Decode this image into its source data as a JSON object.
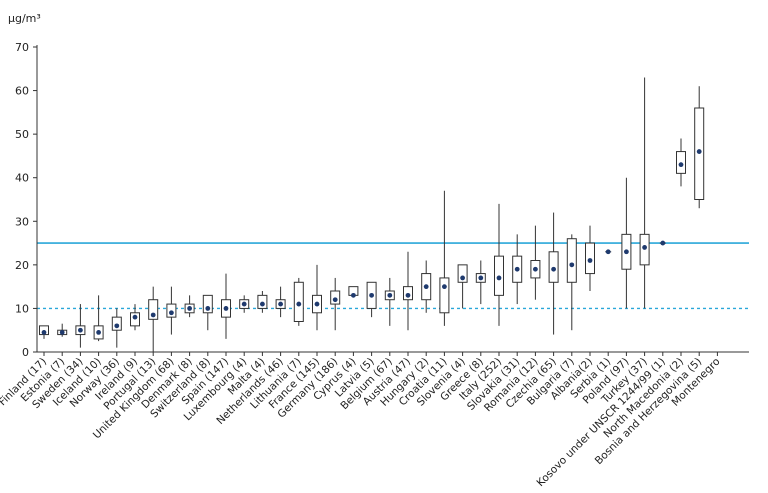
{
  "chart_data": {
    "type": "boxplot",
    "y_unit": "µg/m³",
    "ylim": [
      0,
      70
    ],
    "yticks": [
      0,
      10,
      20,
      30,
      40,
      50,
      60,
      70
    ],
    "reference_lines": [
      {
        "value": 25,
        "style": "solid",
        "color": "#2aa7d9"
      },
      {
        "value": 10,
        "style": "dashed",
        "color": "#2aa7d9"
      }
    ],
    "box_color": "#333333",
    "marker_color": "#1f3a6e",
    "categories": [
      "Finland (17)",
      "Estonia (7)",
      "Sweden (34)",
      "Iceland (10)",
      "Norway (36)",
      "Ireland (9)",
      "Portugal (13)",
      "United Kingdom (68)",
      "Denmark (8)",
      "Switzerland (8)",
      "Spain (147)",
      "Luxembourg (4)",
      "Malta (4)",
      "Netherlands (46)",
      "Lithuania (7)",
      "France (145)",
      "Germany (186)",
      "Cyprus (4)",
      "Latvia (5)",
      "Belgium (67)",
      "Austria (47)",
      "Hungary (2)",
      "Croatia (11)",
      "Slovenia (4)",
      "Greece (8)",
      "Italy (252)",
      "Slovakia (31)",
      "Romania (12)",
      "Czechia (65)",
      "Bulgaria (7)",
      "Albania(2)",
      "Serbia (1)",
      "Poland (97)",
      "Turkey (37)",
      "Kosovo under UNSCR 1244/99 (1)",
      "North Macedonia (2)",
      "Bosnia and Herzegovina (5)",
      "Montenegro"
    ],
    "series": [
      {
        "min": 3,
        "q1": 4,
        "median": 4.5,
        "q3": 6,
        "max": 6
      },
      {
        "min": 3.5,
        "q1": 4,
        "median": 4.5,
        "q3": 5,
        "max": 6.5
      },
      {
        "min": 1,
        "q1": 4,
        "median": 5,
        "q3": 6,
        "max": 11
      },
      {
        "min": 2.5,
        "q1": 3,
        "median": 4.5,
        "q3": 6,
        "max": 13
      },
      {
        "min": 1,
        "q1": 5,
        "median": 6,
        "q3": 8,
        "max": 10
      },
      {
        "min": 5,
        "q1": 6,
        "median": 8,
        "q3": 9,
        "max": 11
      },
      {
        "min": 0,
        "q1": 7.5,
        "median": 8.5,
        "q3": 12,
        "max": 15
      },
      {
        "min": 4,
        "q1": 8,
        "median": 9,
        "q3": 11,
        "max": 15
      },
      {
        "min": 8,
        "q1": 9,
        "median": 10,
        "q3": 11,
        "max": 13
      },
      {
        "min": 5,
        "q1": 9,
        "median": 10,
        "q3": 13,
        "max": 13
      },
      {
        "min": 3,
        "q1": 8,
        "median": 10,
        "q3": 12,
        "max": 18
      },
      {
        "min": 9,
        "q1": 10,
        "median": 11,
        "q3": 12,
        "max": 13
      },
      {
        "min": 9,
        "q1": 10,
        "median": 11,
        "q3": 13,
        "max": 14
      },
      {
        "min": 8,
        "q1": 10,
        "median": 11,
        "q3": 12,
        "max": 15
      },
      {
        "min": 6,
        "q1": 7,
        "median": 11,
        "q3": 16,
        "max": 17
      },
      {
        "min": 5,
        "q1": 9,
        "median": 11,
        "q3": 13,
        "max": 20
      },
      {
        "min": 5,
        "q1": 11,
        "median": 12,
        "q3": 14,
        "max": 17
      },
      {
        "min": 13,
        "q1": 13,
        "median": 13,
        "q3": 15,
        "max": 15
      },
      {
        "min": 8,
        "q1": 10,
        "median": 13,
        "q3": 16,
        "max": 16
      },
      {
        "min": 6,
        "q1": 12,
        "median": 13,
        "q3": 14,
        "max": 17
      },
      {
        "min": 5,
        "q1": 12,
        "median": 13,
        "q3": 15,
        "max": 23
      },
      {
        "min": 9,
        "q1": 12,
        "median": 15,
        "q3": 18,
        "max": 21
      },
      {
        "min": 6,
        "q1": 9,
        "median": 15,
        "q3": 17,
        "max": 37
      },
      {
        "min": 10,
        "q1": 16,
        "median": 17,
        "q3": 20,
        "max": 20
      },
      {
        "min": 11,
        "q1": 16,
        "median": 17,
        "q3": 18,
        "max": 21
      },
      {
        "min": 6,
        "q1": 13,
        "median": 17,
        "q3": 22,
        "max": 34
      },
      {
        "min": 11,
        "q1": 16,
        "median": 19,
        "q3": 22,
        "max": 27
      },
      {
        "min": 12,
        "q1": 17,
        "median": 19,
        "q3": 21,
        "max": 29
      },
      {
        "min": 4,
        "q1": 16,
        "median": 19,
        "q3": 23,
        "max": 32
      },
      {
        "min": 5,
        "q1": 16,
        "median": 20,
        "q3": 26,
        "max": 27
      },
      {
        "min": 14,
        "q1": 18,
        "median": 21,
        "q3": 25,
        "max": 29
      },
      {
        "min": 23,
        "q1": 23,
        "median": 23,
        "q3": 23,
        "max": 23
      },
      {
        "min": 10,
        "q1": 19,
        "median": 23,
        "q3": 27,
        "max": 40
      },
      {
        "min": 10,
        "q1": 20,
        "median": 24,
        "q3": 27,
        "max": 63
      },
      {
        "min": 25,
        "q1": 25,
        "median": 25,
        "q3": 25,
        "max": 25
      },
      {
        "min": 38,
        "q1": 41,
        "median": 43,
        "q3": 46,
        "max": 49
      },
      {
        "min": 33,
        "q1": 35,
        "median": 46,
        "q3": 56,
        "max": 61
      },
      null
    ]
  }
}
